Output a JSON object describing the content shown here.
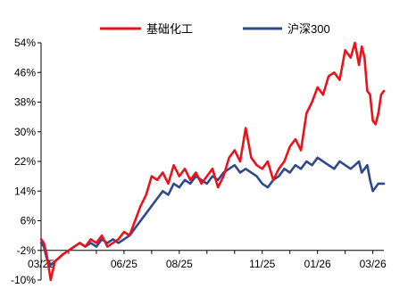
{
  "chart_data": {
    "type": "line",
    "title": "",
    "xlabel": "",
    "ylabel": "",
    "ylim": [
      -10,
      54
    ],
    "yticks": [
      "54%",
      "46%",
      "38%",
      "30%",
      "22%",
      "14%",
      "6%",
      "-2%",
      "-10%"
    ],
    "ytick_values": [
      54,
      46,
      38,
      30,
      22,
      14,
      6,
      -2,
      -10
    ],
    "xtick_labels": [
      "03/25",
      "06/25",
      "08/25",
      "11/25",
      "01/26",
      "03/26"
    ],
    "xtick_month_index": [
      0,
      3,
      5,
      8,
      10,
      12
    ],
    "x_range_months": [
      0,
      12.4
    ],
    "grid": false,
    "legend_position": "top-center",
    "series": [
      {
        "name": "基础化工",
        "color": "#e8141c",
        "x": [
          0,
          0.1,
          0.2,
          0.35,
          0.5,
          0.65,
          0.8,
          1.0,
          1.2,
          1.4,
          1.6,
          1.8,
          2.0,
          2.2,
          2.4,
          2.6,
          2.8,
          3.0,
          3.2,
          3.4,
          3.6,
          3.8,
          4.0,
          4.2,
          4.4,
          4.6,
          4.8,
          5.0,
          5.2,
          5.4,
          5.6,
          5.8,
          6.0,
          6.2,
          6.4,
          6.6,
          6.8,
          7.0,
          7.2,
          7.4,
          7.6,
          7.8,
          8.0,
          8.2,
          8.4,
          8.6,
          8.8,
          9.0,
          9.2,
          9.4,
          9.6,
          9.8,
          10.0,
          10.2,
          10.4,
          10.6,
          10.8,
          11.0,
          11.2,
          11.35,
          11.5,
          11.6,
          11.7,
          11.8,
          11.9,
          12.0,
          12.1,
          12.2,
          12.3,
          12.4
        ],
        "values": [
          1,
          0,
          -3,
          -10,
          -5,
          -4,
          -3,
          -2,
          -1,
          0,
          -1,
          1,
          0,
          2,
          -1,
          0,
          1,
          3,
          2,
          6,
          10,
          13,
          18,
          17,
          19,
          16,
          21,
          18,
          20,
          17,
          19,
          16,
          18,
          20,
          15,
          18,
          23,
          25,
          22,
          31,
          23,
          21,
          20,
          22,
          17,
          20,
          22,
          26,
          28,
          25,
          35,
          38,
          42,
          40,
          45,
          46,
          44,
          52,
          50,
          54,
          48,
          53,
          50,
          41,
          40,
          33,
          32,
          35,
          40,
          41
        ]
      },
      {
        "name": "沪深300",
        "color": "#2e4a8c",
        "x": [
          0,
          0.1,
          0.2,
          0.35,
          0.5,
          0.65,
          0.8,
          1.0,
          1.2,
          1.4,
          1.6,
          1.8,
          2.0,
          2.2,
          2.4,
          2.6,
          2.8,
          3.0,
          3.2,
          3.4,
          3.6,
          3.8,
          4.0,
          4.2,
          4.4,
          4.6,
          4.8,
          5.0,
          5.2,
          5.4,
          5.6,
          5.8,
          6.0,
          6.2,
          6.4,
          6.6,
          6.8,
          7.0,
          7.2,
          7.4,
          7.6,
          7.8,
          8.0,
          8.2,
          8.4,
          8.6,
          8.8,
          9.0,
          9.2,
          9.4,
          9.6,
          9.8,
          10.0,
          10.2,
          10.4,
          10.6,
          10.8,
          11.0,
          11.2,
          11.35,
          11.5,
          11.6,
          11.7,
          11.8,
          11.9,
          12.0,
          12.1,
          12.2,
          12.3,
          12.4
        ],
        "values": [
          0,
          -1,
          -4,
          -6,
          -5,
          -4,
          -3,
          -2,
          -1,
          0,
          -1,
          0,
          -1,
          1,
          0,
          1,
          0,
          1,
          2,
          4,
          6,
          8,
          10,
          12,
          14,
          13,
          16,
          15,
          17,
          16,
          18,
          17,
          16,
          18,
          17,
          19,
          20,
          21,
          19,
          20,
          19,
          18,
          16,
          15,
          17,
          18,
          20,
          19,
          21,
          20,
          22,
          21,
          23,
          22,
          21,
          20,
          22,
          21,
          20,
          21,
          22,
          19,
          20,
          21,
          17,
          14,
          15,
          16,
          16,
          16
        ]
      }
    ]
  }
}
